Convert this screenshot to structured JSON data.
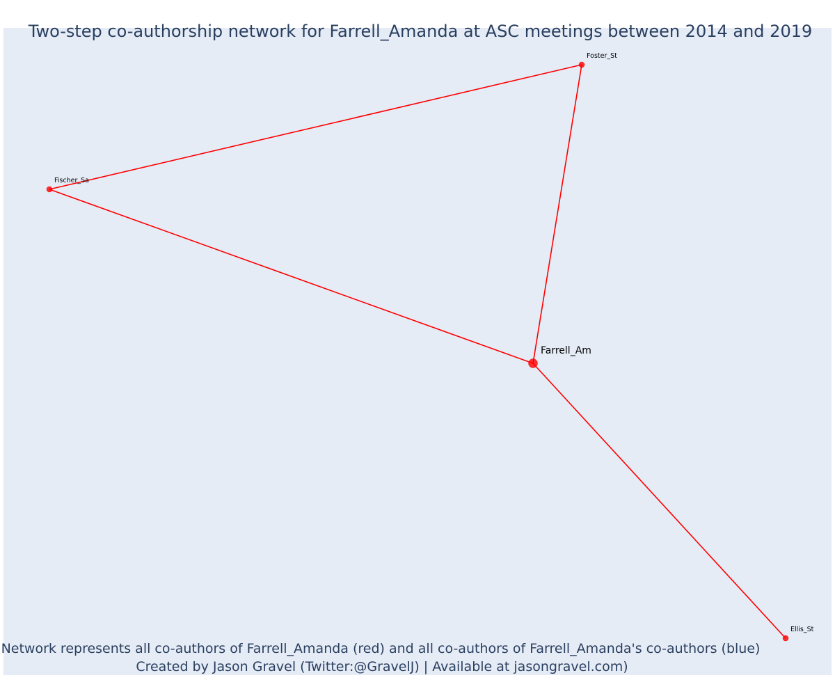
{
  "title": "Two-step co-authorship network for Farrell_Amanda at ASC meetings between 2014 and 2019",
  "caption": {
    "line1": "Network represents all co-authors of Farrell_Amanda (red) and all co-authors of Farrell_Amanda's co-authors (blue)",
    "line2": "Created by Jason Gravel (Twitter:@GravelJ) | Available at jasongravel.com)"
  },
  "colors": {
    "plot_background": "#e5ecf6",
    "edge": "#ff0000",
    "coauthor_node": "#ff0000",
    "title_text": "#2a3f5f"
  },
  "network": {
    "center": "Farrell_Am",
    "nodes": [
      {
        "id": "Farrell_Am",
        "label": "Farrell_Am",
        "role": "focal"
      },
      {
        "id": "Foster_St",
        "label": "Foster_St",
        "role": "coauthor"
      },
      {
        "id": "Fischer_Sa",
        "label": "Fischer_Sa",
        "role": "coauthor"
      },
      {
        "id": "Ellis_St",
        "label": "Ellis_St",
        "role": "coauthor"
      }
    ],
    "edges": [
      {
        "source": "Foster_St",
        "target": "Fischer_Sa"
      },
      {
        "source": "Foster_St",
        "target": "Farrell_Am"
      },
      {
        "source": "Fischer_Sa",
        "target": "Farrell_Am"
      },
      {
        "source": "Farrell_Am",
        "target": "Ellis_St"
      }
    ]
  }
}
